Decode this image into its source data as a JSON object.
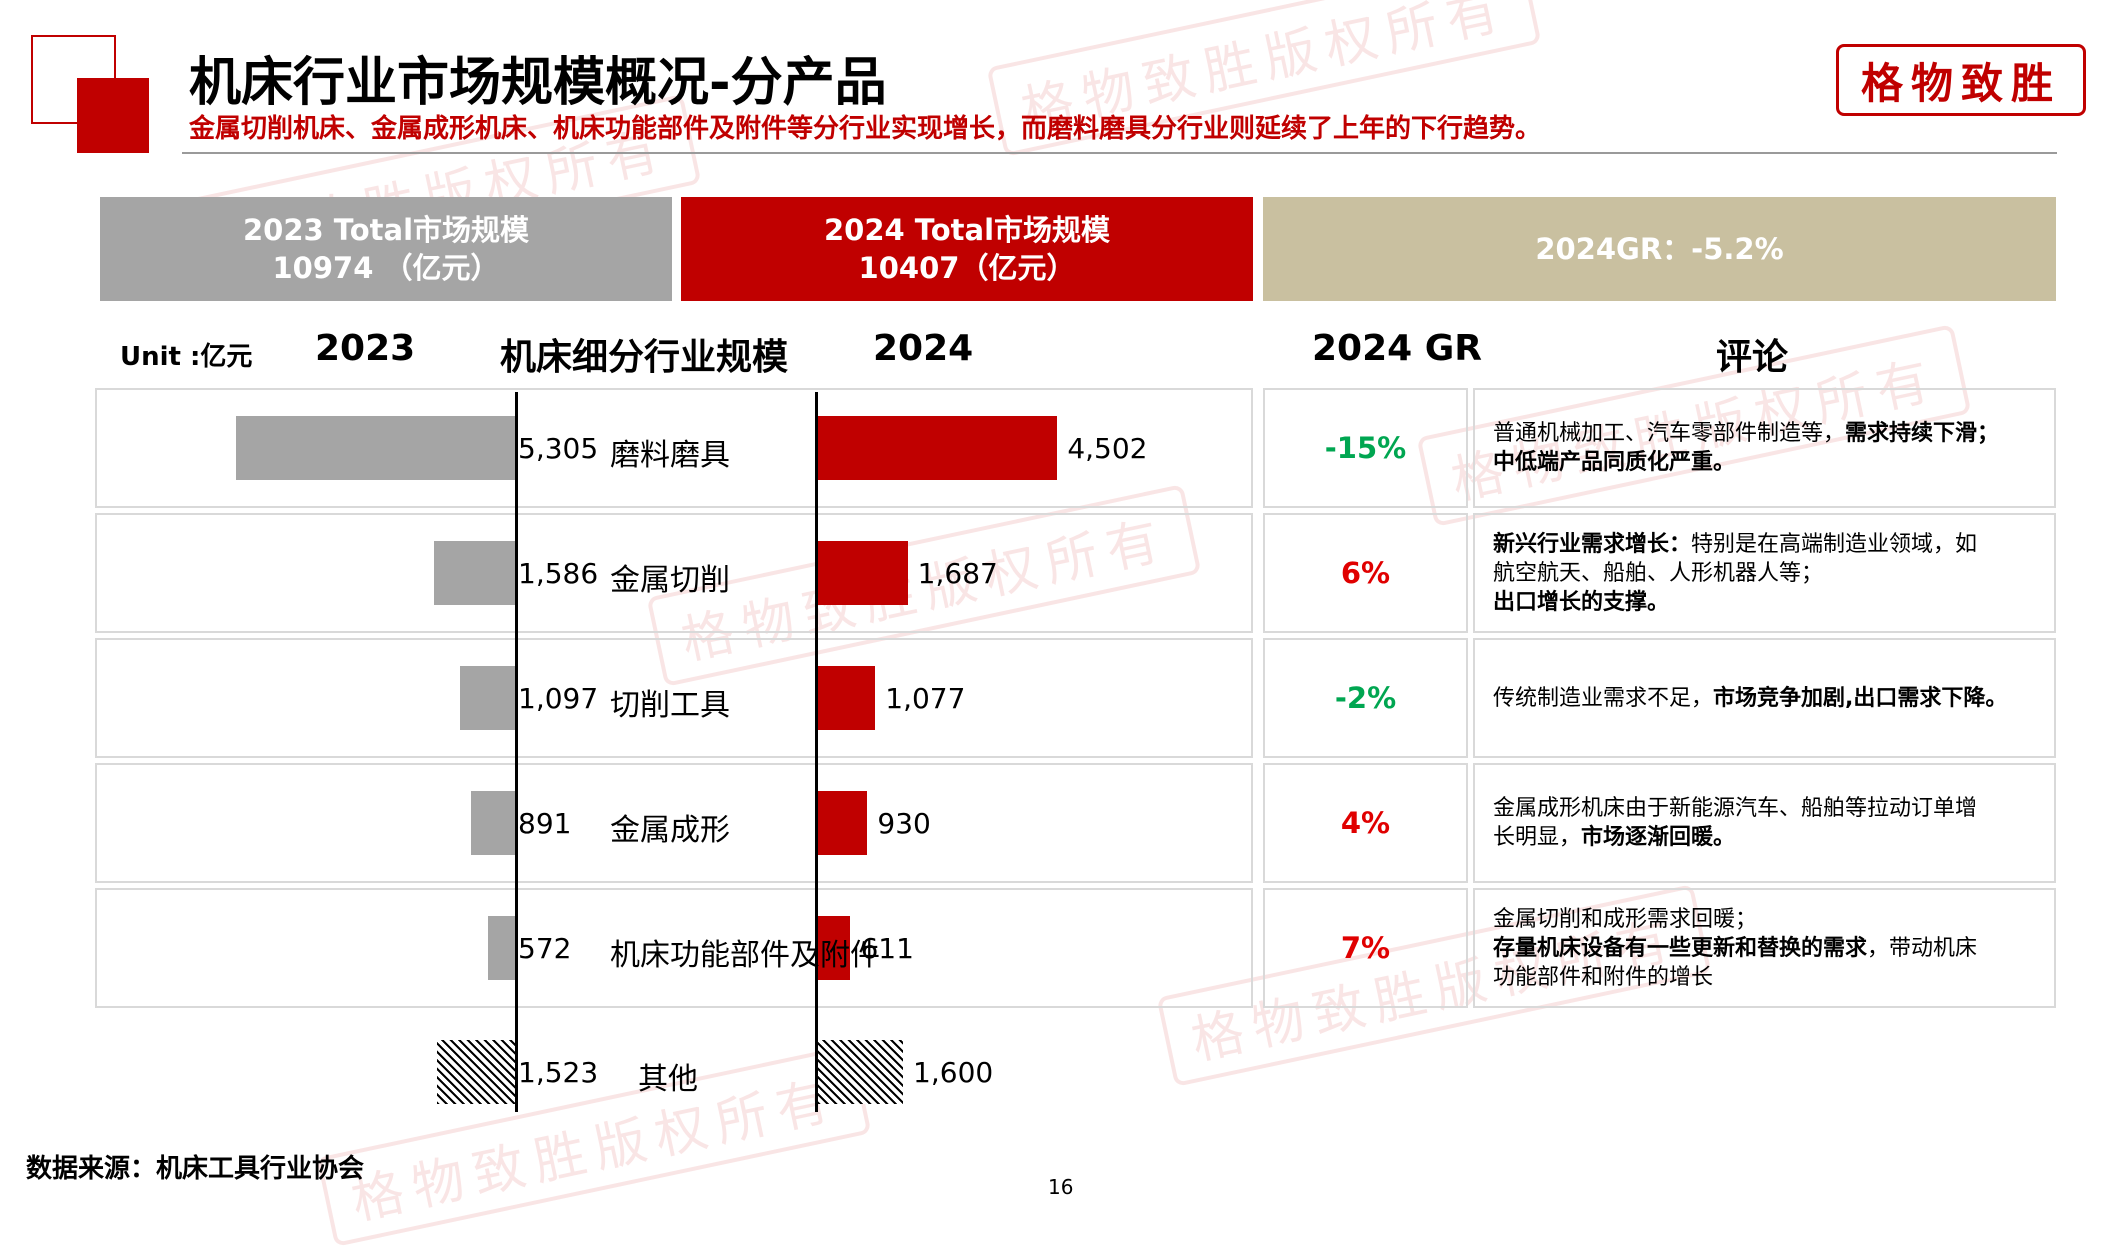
{
  "header": {
    "title": "机床行业市场规模概况-分产品",
    "subtitle": "金属切削机床、金属成形机床、机床功能部件及附件等分行业实现增长，而磨料磨具分行业则延续了上年的下行趋势。",
    "logo_text": "格物致胜",
    "accent_color": "#c00000"
  },
  "summary": {
    "total_2023_line1": "2023 Total市场规模",
    "total_2023_line2": "10974 （亿元）",
    "total_2024_line1": "2024 Total市场规模",
    "total_2024_line2": "10407（亿元）",
    "gr_2024": "2024GR：-5.2%"
  },
  "columns": {
    "unit": "Unit :亿元",
    "year_2023": "2023",
    "segment": "机床细分行业规模",
    "year_2024": "2024",
    "gr": "2024 GR",
    "comment": "评论"
  },
  "chart_data": {
    "type": "bar",
    "categories": [
      "磨料磨具",
      "金属切削",
      "切削工具",
      "金属成形",
      "机床功能部件及附件",
      "其他"
    ],
    "series": [
      {
        "name": "2023",
        "values": [
          5305,
          1586,
          1097,
          891,
          572,
          1523
        ],
        "labels": [
          "5,305",
          "1,586",
          "1,097",
          "891",
          "572",
          "1,523"
        ],
        "color": "#a5a5a5"
      },
      {
        "name": "2024",
        "values": [
          4502,
          1687,
          1077,
          930,
          611,
          1600
        ],
        "labels": [
          "4,502",
          "1,687",
          "1,077",
          "930",
          "611",
          "1,600"
        ],
        "color": "#c00000"
      }
    ],
    "growth_rates": [
      "-15%",
      "6%",
      "-2%",
      "4%",
      "7%"
    ],
    "growth_colors": [
      "#00a651",
      "#e00000",
      "#00a651",
      "#e00000",
      "#e00000"
    ],
    "hatched_categories": [
      "其他"
    ]
  },
  "comments": [
    [
      {
        "t": "普通机械加工、汽车零部件制造等，",
        "b": false
      },
      {
        "t": "需求持续下滑；",
        "b": true
      },
      {
        "br": true
      },
      {
        "t": "中低端产品同质化严重。",
        "b": true
      }
    ],
    [
      {
        "t": "新兴行业需求增长：",
        "b": true
      },
      {
        "t": "特别是在高端制造业领域，如",
        "b": false
      },
      {
        "br": true
      },
      {
        "t": "航空航天、船舶、人形机器人等；",
        "b": false
      },
      {
        "br": true
      },
      {
        "t": "出口增长的支撑。",
        "b": true
      }
    ],
    [
      {
        "t": "传统制造业需求不足，",
        "b": false
      },
      {
        "t": "市场竞争加剧,出口需求下降。",
        "b": true
      }
    ],
    [
      {
        "t": "金属成形机床由于新能源汽车、船舶等拉动订单增",
        "b": false
      },
      {
        "br": true
      },
      {
        "t": "长明显，",
        "b": false
      },
      {
        "t": "市场逐渐回暖。",
        "b": true
      }
    ],
    [
      {
        "t": "金属切削和成形需求回暖；",
        "b": false
      },
      {
        "br": true
      },
      {
        "t": "存量机床设备有一些更新和替换的需求",
        "b": true
      },
      {
        "t": "，带动机床",
        "b": false
      },
      {
        "br": true
      },
      {
        "t": "功能部件和附件的增长",
        "b": false
      }
    ]
  ],
  "footer": {
    "source": "数据来源：机床工具行业协会",
    "page_number": "16"
  },
  "watermark_text": "格物致胜版权所有"
}
